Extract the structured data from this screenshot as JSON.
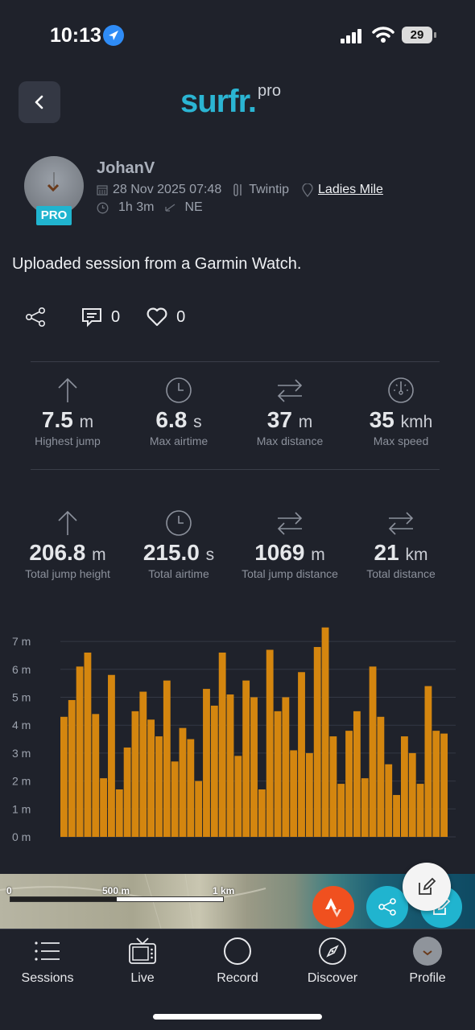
{
  "status_bar": {
    "time": "10:13",
    "battery": "29"
  },
  "header": {
    "logo_brand": "surfr.",
    "logo_suffix": "pro"
  },
  "profile": {
    "username": "JohanV",
    "badge": "PRO",
    "date": "28 Nov 2025 07:48",
    "board": "Twintip",
    "spot": "Ladies Mile",
    "duration": "1h 3m",
    "wind_direction": "NE"
  },
  "description": "Uploaded session from a Garmin Watch.",
  "actions": {
    "comments": "0",
    "likes": "0"
  },
  "stats_top": [
    {
      "icon": "arrow-up-icon",
      "value": "7.5",
      "unit": "m",
      "label": "Highest jump"
    },
    {
      "icon": "clock-icon",
      "value": "6.8",
      "unit": "s",
      "label": "Max airtime"
    },
    {
      "icon": "swap-arrows-icon",
      "value": "37",
      "unit": "m",
      "label": "Max distance"
    },
    {
      "icon": "speedometer-icon",
      "value": "35",
      "unit": "kmh",
      "label": "Max speed"
    }
  ],
  "stats_bottom": [
    {
      "icon": "arrow-up-icon",
      "value": "206.8",
      "unit": "m",
      "label": "Total jump height"
    },
    {
      "icon": "clock-icon",
      "value": "215.0",
      "unit": "s",
      "label": "Total airtime"
    },
    {
      "icon": "swap-arrows-icon",
      "value": "1069",
      "unit": "m",
      "label": "Total jump distance"
    },
    {
      "icon": "swap-arrows-icon",
      "value": "21",
      "unit": "km",
      "label": "Total distance"
    }
  ],
  "chart_data": {
    "type": "bar",
    "y_ticks": [
      "0 m",
      "1 m",
      "2 m",
      "3 m",
      "4 m",
      "5 m",
      "6 m",
      "7 m"
    ],
    "ylim": [
      0,
      7.6
    ],
    "color": "#d4860f",
    "values": [
      4.3,
      4.9,
      6.1,
      6.6,
      4.4,
      2.1,
      5.8,
      1.7,
      3.2,
      4.5,
      5.2,
      4.2,
      3.6,
      5.6,
      2.7,
      3.9,
      3.5,
      2.0,
      5.3,
      4.7,
      6.6,
      5.1,
      2.9,
      5.6,
      5.0,
      1.7,
      6.7,
      4.5,
      5.0,
      3.1,
      5.9,
      3.0,
      6.8,
      7.5,
      3.6,
      1.9,
      3.8,
      4.5,
      2.1,
      6.1,
      4.3,
      2.6,
      1.5,
      3.6,
      3.0,
      1.9,
      5.4,
      3.8,
      3.7
    ]
  },
  "map": {
    "scale_labels": [
      "0",
      "500 m",
      "1 km"
    ]
  },
  "tabs": [
    {
      "label": "Sessions",
      "icon": "list-icon"
    },
    {
      "label": "Live",
      "icon": "tv-icon"
    },
    {
      "label": "Record",
      "icon": "record-circle-icon"
    },
    {
      "label": "Discover",
      "icon": "compass-icon"
    },
    {
      "label": "Profile",
      "icon": "avatar-icon"
    }
  ]
}
